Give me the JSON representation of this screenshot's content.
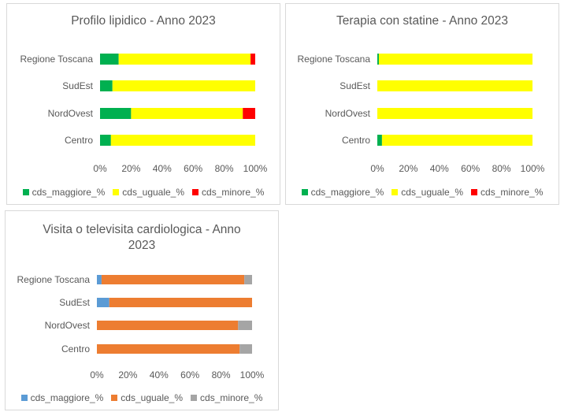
{
  "chart_data": [
    {
      "type": "bar",
      "orientation": "horizontal",
      "stacked": "percent",
      "title": "Profilo lipidico - Anno 2023",
      "categories": [
        "Regione Toscana",
        "SudEst",
        "NordOvest",
        "Centro"
      ],
      "xticks": [
        "0%",
        "20%",
        "40%",
        "60%",
        "80%",
        "100%"
      ],
      "xlim": [
        0,
        100
      ],
      "legend_position": "bottom",
      "series": [
        {
          "name": "cds_maggiore_%",
          "color": "#00b050",
          "values": [
            12,
            8,
            20,
            7
          ]
        },
        {
          "name": "cds_uguale_%",
          "color": "#ffff00",
          "values": [
            85,
            92,
            72,
            93
          ]
        },
        {
          "name": "cds_minore_%",
          "color": "#ff0000",
          "values": [
            3,
            0,
            8,
            0
          ]
        }
      ]
    },
    {
      "type": "bar",
      "orientation": "horizontal",
      "stacked": "percent",
      "title": "Terapia con statine - Anno 2023",
      "categories": [
        "Regione Toscana",
        "SudEst",
        "NordOvest",
        "Centro"
      ],
      "xticks": [
        "0%",
        "20%",
        "40%",
        "60%",
        "80%",
        "100%"
      ],
      "xlim": [
        0,
        100
      ],
      "legend_position": "bottom",
      "series": [
        {
          "name": "cds_maggiore_%",
          "color": "#00b050",
          "values": [
            1,
            0,
            0,
            3
          ]
        },
        {
          "name": "cds_uguale_%",
          "color": "#ffff00",
          "values": [
            99,
            100,
            100,
            97
          ]
        },
        {
          "name": "cds_minore_%",
          "color": "#ff0000",
          "values": [
            0,
            0,
            0,
            0
          ]
        }
      ]
    },
    {
      "type": "bar",
      "orientation": "horizontal",
      "stacked": "percent",
      "title": "Visita o televisita cardiologica - Anno 2023",
      "categories": [
        "Regione Toscana",
        "SudEst",
        "NordOvest",
        "Centro"
      ],
      "xticks": [
        "0%",
        "20%",
        "40%",
        "60%",
        "80%",
        "100%"
      ],
      "xlim": [
        0,
        100
      ],
      "legend_position": "bottom",
      "series": [
        {
          "name": "cds_maggiore_%",
          "color": "#5b9bd5",
          "values": [
            3,
            8,
            0,
            0
          ]
        },
        {
          "name": "cds_uguale_%",
          "color": "#ed7d31",
          "values": [
            92,
            92,
            91,
            92
          ]
        },
        {
          "name": "cds_minore_%",
          "color": "#a5a5a5",
          "values": [
            5,
            0,
            9,
            8
          ]
        }
      ]
    }
  ]
}
